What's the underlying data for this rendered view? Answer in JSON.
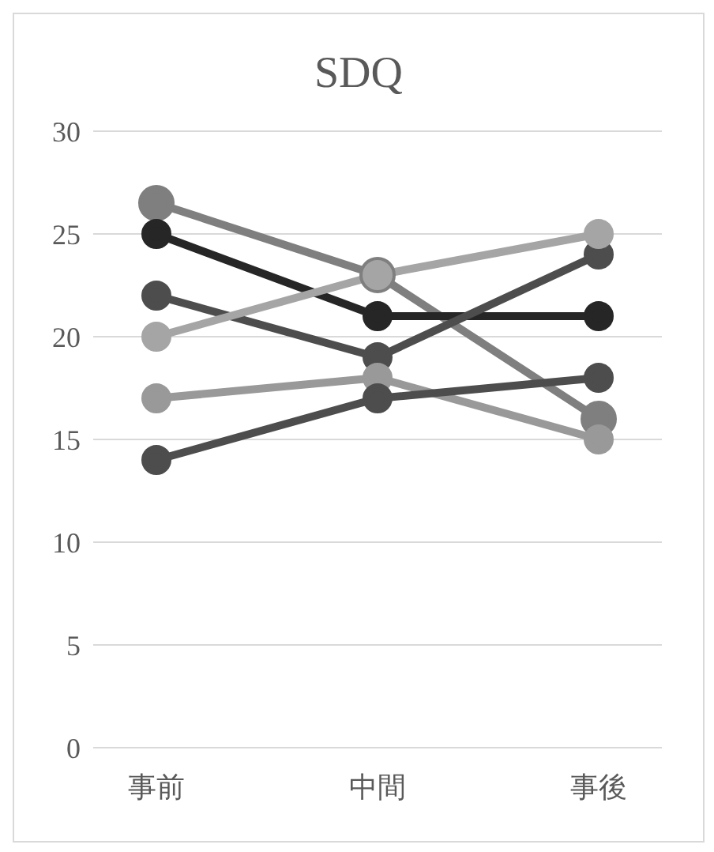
{
  "chart_data": {
    "type": "line",
    "title": "SDQ",
    "categories": [
      "事前",
      "中間",
      "事後"
    ],
    "series": [
      {
        "color": "#7f7f7f",
        "values": [
          26.5,
          23,
          16
        ]
      },
      {
        "color": "#262626",
        "values": [
          25,
          21,
          21
        ]
      },
      {
        "color": "#4d4d4d",
        "values": [
          22,
          19,
          24
        ]
      },
      {
        "color": "#a5a5a5",
        "values": [
          20,
          23,
          25
        ]
      },
      {
        "color": "#999999",
        "values": [
          17,
          18,
          15
        ]
      },
      {
        "color": "#4d4d4d",
        "values": [
          14,
          17,
          18
        ]
      }
    ],
    "ylim": [
      0,
      30
    ],
    "yticks": [
      0,
      5,
      10,
      15,
      20,
      25,
      30
    ],
    "grid": "y",
    "marker": "circle",
    "legend": false
  }
}
